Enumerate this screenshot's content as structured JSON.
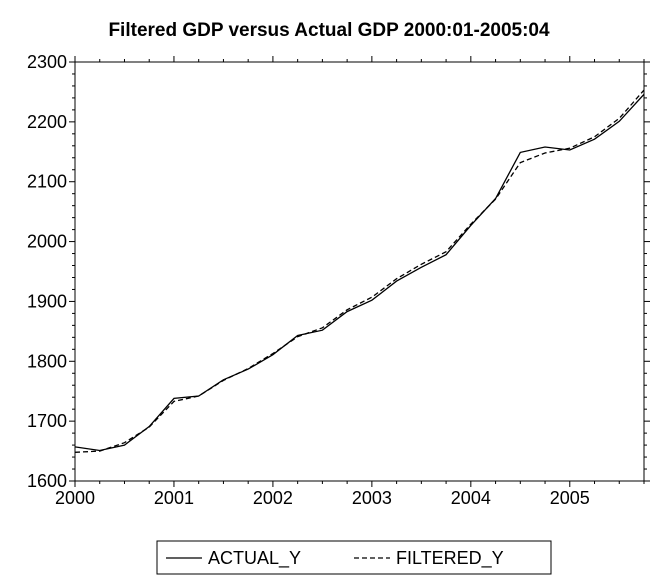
{
  "chart_data": {
    "type": "line",
    "title": "Filtered GDP versus Actual GDP 2000:01-2005:04",
    "xlabel": "",
    "ylabel": "",
    "xlim": [
      2000,
      2005.75
    ],
    "ylim": [
      1600,
      2300
    ],
    "x_ticks": [
      "2000",
      "2001",
      "2002",
      "2003",
      "2004",
      "2005"
    ],
    "y_ticks": [
      "1600",
      "1700",
      "1800",
      "1900",
      "2000",
      "2100",
      "2200",
      "2300"
    ],
    "grid": false,
    "legend_position": "bottom-center",
    "x": [
      "2000:01",
      "2000:02",
      "2000:03",
      "2000:04",
      "2001:01",
      "2001:02",
      "2001:03",
      "2001:04",
      "2002:01",
      "2002:02",
      "2002:03",
      "2002:04",
      "2003:01",
      "2003:02",
      "2003:03",
      "2003:04",
      "2004:01",
      "2004:02",
      "2004:03",
      "2004:04",
      "2005:01",
      "2005:02",
      "2005:03",
      "2005:04"
    ],
    "series": [
      {
        "name": "ACTUAL_Y",
        "style": "solid",
        "color": "#000000",
        "values": [
          1657,
          1651,
          1660,
          1691,
          1738,
          1742,
          1769,
          1787,
          1811,
          1843,
          1852,
          1883,
          1902,
          1934,
          1957,
          1978,
          2027,
          2072,
          2149,
          2158,
          2153,
          2171,
          2201,
          2246
        ]
      },
      {
        "name": "FILTERED_Y",
        "style": "dashed",
        "color": "#000000",
        "values": [
          1648,
          1650,
          1664,
          1690,
          1733,
          1742,
          1768,
          1788,
          1813,
          1841,
          1856,
          1886,
          1907,
          1938,
          1962,
          1983,
          2029,
          2071,
          2132,
          2148,
          2156,
          2175,
          2206,
          2253
        ]
      }
    ]
  }
}
